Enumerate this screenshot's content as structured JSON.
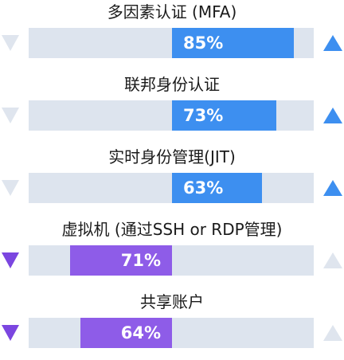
{
  "chart_data": {
    "type": "bar",
    "orientation": "diverging-horizontal",
    "rows": [
      {
        "label": "多因素认证 (MFA)",
        "value": 85,
        "value_label": "85%",
        "direction": "up",
        "color": "#3d8ff0"
      },
      {
        "label": "联邦身份认证",
        "value": 73,
        "value_label": "73%",
        "direction": "up",
        "color": "#3d8ff0"
      },
      {
        "label": "实时身份管理(JIT)",
        "value": 63,
        "value_label": "63%",
        "direction": "up",
        "color": "#3d8ff0"
      },
      {
        "label": "虚拟机 (通过SSH or RDP管理)",
        "value": 71,
        "value_label": "71%",
        "direction": "down",
        "color": "#8e5ce8"
      },
      {
        "label": "共享账户",
        "value": 64,
        "value_label": "64%",
        "direction": "down",
        "color": "#8e5ce8"
      }
    ],
    "track_color": "#dde4ee",
    "active_up_color": "#3d8ff0",
    "active_down_color": "#7b46e0",
    "inactive_arrow_color": "#dfe5ee"
  }
}
